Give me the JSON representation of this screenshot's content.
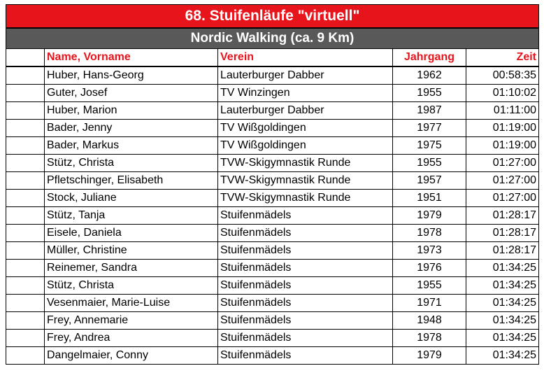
{
  "title": "68. Stuifenläufe \"virtuell\"",
  "subtitle": "Nordic Walking (ca. 9 Km)",
  "columns": {
    "name": "Name, Vorname",
    "club": "Verein",
    "year": "Jahrgang",
    "time": "Zeit"
  },
  "rows": [
    {
      "name": "Huber, Hans-Georg",
      "club": "Lauterburger Dabber",
      "year": "1962",
      "time": "00:58:35"
    },
    {
      "name": "Guter, Josef",
      "club": "TV Winzingen",
      "year": "1955",
      "time": "01:10:02"
    },
    {
      "name": "Huber, Marion",
      "club": "Lauterburger Dabber",
      "year": "1987",
      "time": "01:11:00"
    },
    {
      "name": "Bader, Jenny",
      "club": "TV Wißgoldingen",
      "year": "1977",
      "time": "01:19:00"
    },
    {
      "name": "Bader, Markus",
      "club": "TV Wißgoldingen",
      "year": "1975",
      "time": "01:19:00"
    },
    {
      "name": "Stütz, Christa",
      "club": "TVW-Skigymnastik Runde",
      "year": "1955",
      "time": "01:27:00"
    },
    {
      "name": "Pfletschinger, Elisabeth",
      "club": "TVW-Skigymnastik Runde",
      "year": "1957",
      "time": "01:27:00"
    },
    {
      "name": "Stock, Juliane",
      "club": "TVW-Skigymnastik Runde",
      "year": "1951",
      "time": "01:27:00"
    },
    {
      "name": "Stütz, Tanja",
      "club": "Stuifenmädels",
      "year": "1979",
      "time": "01:28:17"
    },
    {
      "name": "Eisele, Daniela",
      "club": "Stuifenmädels",
      "year": "1978",
      "time": "01:28:17"
    },
    {
      "name": "Müller, Christine",
      "club": "Stuifenmädels",
      "year": "1973",
      "time": "01:28:17"
    },
    {
      "name": "Reinemer, Sandra",
      "club": "Stuifenmädels",
      "year": "1976",
      "time": "01:34:25"
    },
    {
      "name": "Stütz, Christa",
      "club": "Stuifenmädels",
      "year": "1955",
      "time": "01:34:25"
    },
    {
      "name": "Vesenmaier, Marie-Luise",
      "club": "Stuifenmädels",
      "year": "1971",
      "time": "01:34:25"
    },
    {
      "name": "Frey, Annemarie",
      "club": "Stuifenmädels",
      "year": "1948",
      "time": "01:34:25"
    },
    {
      "name": "Frey, Andrea",
      "club": "Stuifenmädels",
      "year": "1978",
      "time": "01:34:25"
    },
    {
      "name": "Dangelmaier, Conny",
      "club": "Stuifenmädels",
      "year": "1979",
      "time": "01:34:25"
    }
  ]
}
